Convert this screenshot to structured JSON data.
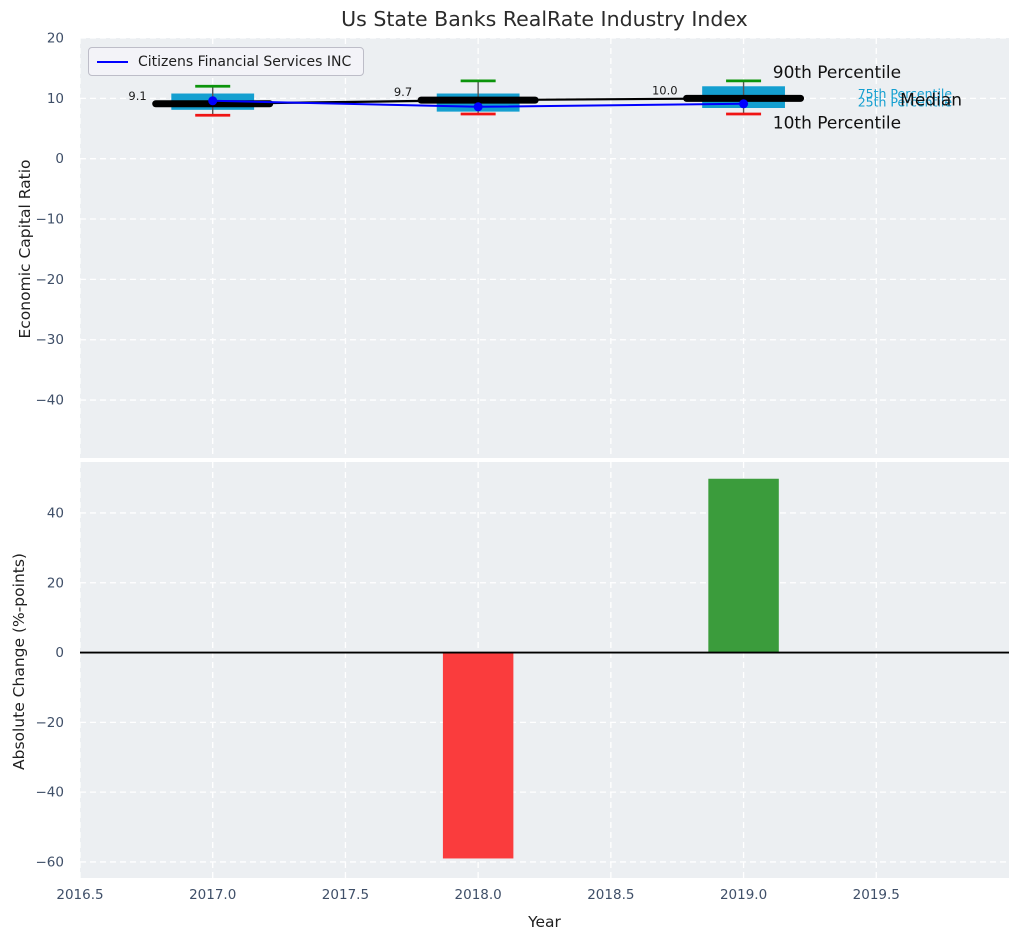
{
  "figure": {
    "title": "Us State Banks RealRate Industry Index",
    "background": "#ffffff",
    "axes_background": "#ecEFF2",
    "grid_color": "#ffffff",
    "tick_color": "#3f4f68",
    "text_color": "#1f1f1f"
  },
  "chart_data": [
    {
      "type": "boxplot",
      "title": "Us State Banks RealRate Industry Index",
      "ylabel": "Economic Capital Ratio",
      "xlim": [
        2016.5,
        2020.0
      ],
      "ylim": [
        -49.6,
        20.0
      ],
      "yticks": [
        20,
        10,
        0,
        -10,
        -20,
        -30,
        -40
      ],
      "xticks": [
        2016.5,
        2017.0,
        2017.5,
        2018.0,
        2018.5,
        2019.0,
        2019.5
      ],
      "x_tick_labels_visible": false,
      "grid": true,
      "legend": {
        "label": "Citizens Financial Services INC",
        "line_color": "#0000ff",
        "position": "upper-left"
      },
      "boxes": [
        {
          "year": 2017,
          "p90": 12.0,
          "p75": 10.8,
          "median": 9.1,
          "p25": 8.1,
          "p10": 7.2,
          "company": 9.6,
          "annotation": "9.1"
        },
        {
          "year": 2018,
          "p90": 12.9,
          "p75": 10.8,
          "median": 9.7,
          "p25": 7.8,
          "p10": 7.4,
          "company": 8.6,
          "annotation": "9.7"
        },
        {
          "year": 2019,
          "p90": 12.9,
          "p75": 12.0,
          "median": 10.0,
          "p25": 8.4,
          "p10": 7.4,
          "company": 9.1,
          "annotation": "10.0"
        }
      ],
      "company_series": {
        "name": "Citizens Financial Services INC",
        "x": [
          2017,
          2018,
          2019
        ],
        "values": [
          9.6,
          8.6,
          9.1
        ],
        "color": "#0000ff"
      },
      "median_series": {
        "x": [
          2017,
          2018,
          2019
        ],
        "values": [
          9.1,
          9.7,
          10.0
        ],
        "color": "#000000"
      },
      "percentile_labels": [
        {
          "name": "label-90th-percentile",
          "text": "90th Percentile",
          "x": 2019.11,
          "value": 14.4,
          "color": "#111111",
          "size": 17
        },
        {
          "name": "label-75th-percentile",
          "text": "75th Percentile",
          "x": 2019.43,
          "value": 10.77,
          "color": "#149fd0",
          "size": 12.5
        },
        {
          "name": "label-25th-percentile",
          "text": "25th Percentile",
          "x": 2019.43,
          "value": 9.36,
          "color": "#149fd0",
          "size": 12.5
        },
        {
          "name": "label-median",
          "text": "Median",
          "x": 2019.59,
          "value": 9.86,
          "color": "#111111",
          "size": 17
        },
        {
          "name": "label-10th-percentile",
          "text": "10th Percentile",
          "x": 2019.11,
          "value": 6.05,
          "color": "#111111",
          "size": 17
        }
      ],
      "colors": {
        "box": "#149fd0",
        "whisker": "#555555",
        "cap_top": "#0b940b",
        "cap_bottom": "#f01414",
        "median": "#000000",
        "company": "#0000ff"
      }
    },
    {
      "type": "bar",
      "ylabel": "Absolute Change (%-points)",
      "xlabel": "Year",
      "xlim": [
        2016.5,
        2020.0
      ],
      "ylim": [
        -64.6,
        54.6
      ],
      "yticks": [
        40,
        20,
        0,
        -20,
        -40,
        -60
      ],
      "xticks": [
        2016.5,
        2017.0,
        2017.5,
        2018.0,
        2018.5,
        2019.0,
        2019.5
      ],
      "x_tick_labels_visible": true,
      "grid": true,
      "zero_line": true,
      "x": [
        2018,
        2019
      ],
      "values": [
        -59.0,
        49.8
      ],
      "bar_colors": [
        "#fa3c3d",
        "#3b9c3c"
      ],
      "bar_width": 0.3
    }
  ]
}
